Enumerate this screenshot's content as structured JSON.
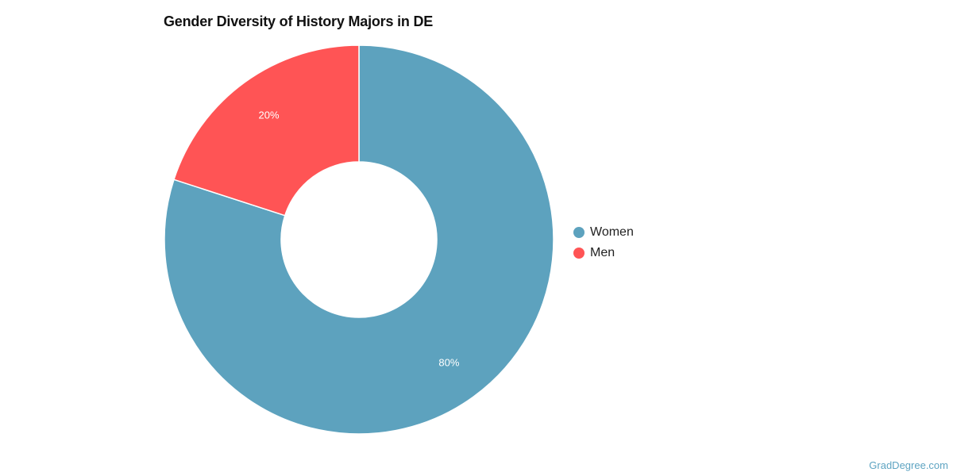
{
  "chart_data": {
    "type": "pie",
    "variant": "donut",
    "title": "Gender Diversity of History Majors in DE",
    "categories": [
      "Women",
      "Men"
    ],
    "values": [
      80,
      20
    ],
    "labels": [
      "80%",
      "20%"
    ],
    "colors": [
      "#5da2be",
      "#ff5455"
    ],
    "legend_position": "right"
  },
  "legend": {
    "items": [
      {
        "label": "Women",
        "color": "#5da2be"
      },
      {
        "label": "Men",
        "color": "#ff5455"
      }
    ]
  },
  "watermark": "GradDegree.com"
}
